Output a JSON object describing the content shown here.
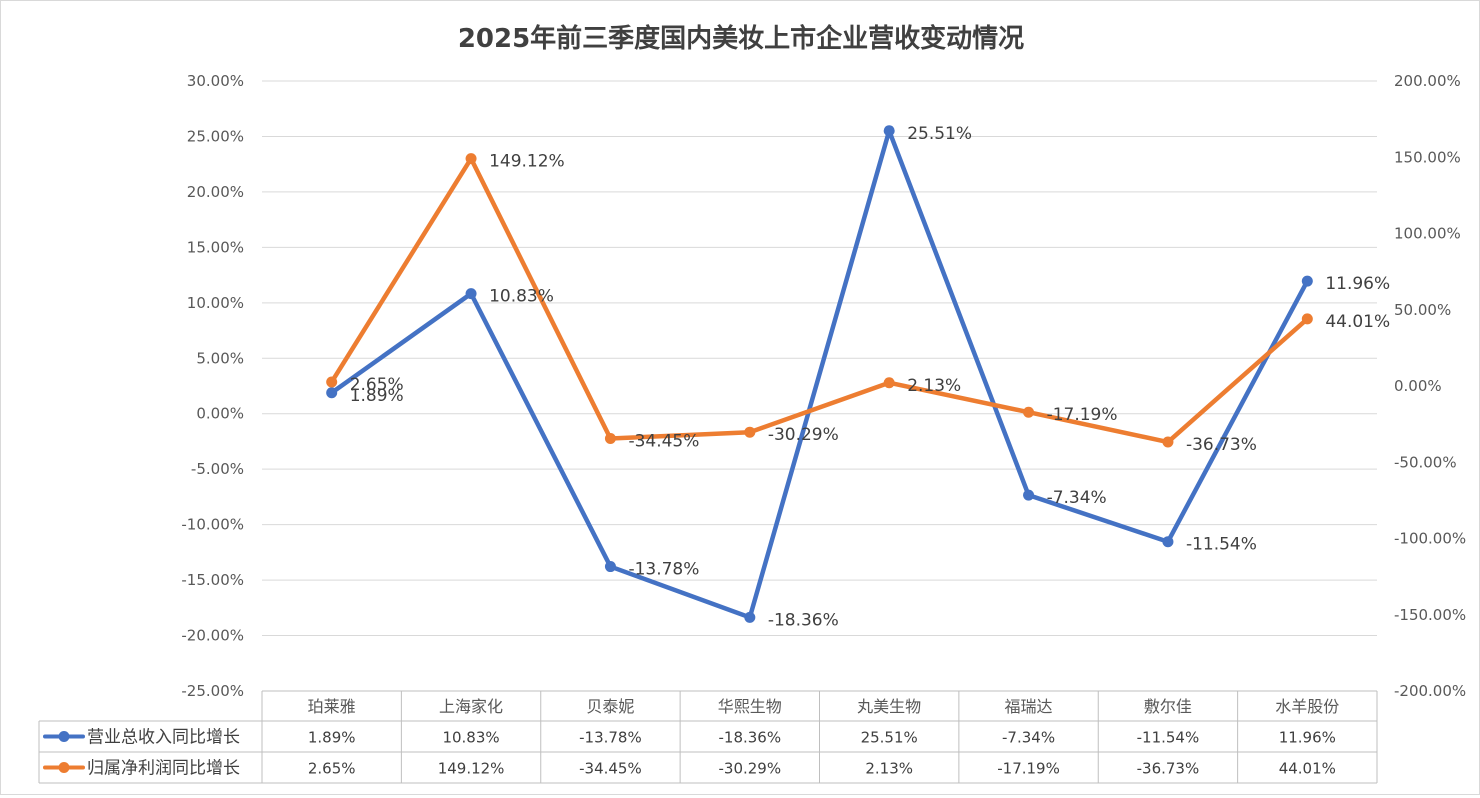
{
  "chart_data": {
    "type": "line",
    "title": "2025年前三季度国内美妆上市企业营收变动情况",
    "categories": [
      "珀莱雅",
      "上海家化",
      "贝泰妮",
      "华熙生物",
      "丸美生物",
      "福瑞达",
      "敷尔佳",
      "水羊股份"
    ],
    "series": [
      {
        "name": "营业总收入同比增长",
        "axis": "left",
        "color": "#4472C4",
        "values": [
          1.89,
          10.83,
          -13.78,
          -18.36,
          25.51,
          -7.34,
          -11.54,
          11.96
        ],
        "labels": [
          "1.89%",
          "10.83%",
          "-13.78%",
          "-18.36%",
          "25.51%",
          "-7.34%",
          "-11.54%",
          "11.96%"
        ]
      },
      {
        "name": "归属净利润同比增长",
        "axis": "right",
        "color": "#ED7D31",
        "values": [
          2.65,
          149.12,
          -34.45,
          -30.29,
          2.13,
          -17.19,
          -36.73,
          44.01
        ],
        "labels": [
          "2.65%",
          "149.12%",
          "-34.45%",
          "-30.29%",
          "2.13%",
          "-17.19%",
          "-36.73%",
          "44.01%"
        ]
      }
    ],
    "y_left": {
      "range": [
        -25,
        30
      ],
      "ticks": [
        30,
        25,
        20,
        15,
        10,
        5,
        0,
        -5,
        -10,
        -15,
        -20,
        -25
      ],
      "tick_labels": [
        "30.00%",
        "25.00%",
        "20.00%",
        "15.00%",
        "10.00%",
        "5.00%",
        "0.00%",
        "-5.00%",
        "-10.00%",
        "-15.00%",
        "-20.00%",
        "-25.00%"
      ]
    },
    "y_right": {
      "range": [
        -200,
        200
      ],
      "ticks": [
        200,
        150,
        100,
        50,
        0,
        -50,
        -100,
        -150,
        -200
      ],
      "tick_labels": [
        "200.00%",
        "150.00%",
        "100.00%",
        "50.00%",
        "0.00%",
        "-50.00%",
        "-100.00%",
        "-150.00%",
        "-200.00%"
      ]
    },
    "grid": true,
    "legend": "data table below x-axis"
  }
}
